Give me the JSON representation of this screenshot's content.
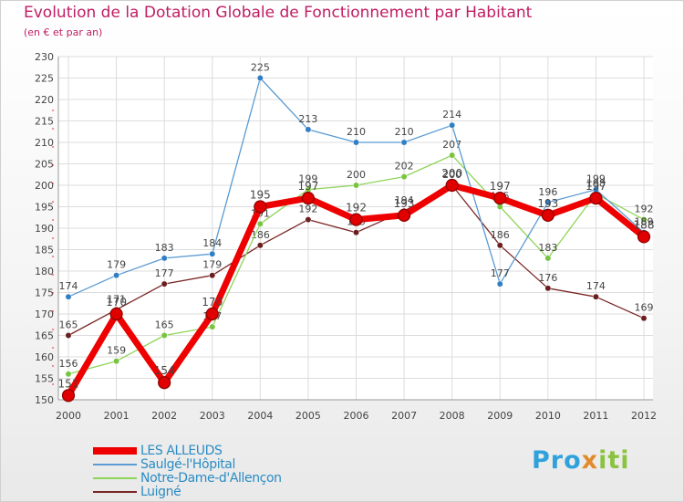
{
  "header": {
    "title": "Evolution de la Dotation Globale de Fonctionnement par Habitant",
    "subtitle": "(en € et par an)"
  },
  "logo": {
    "parts": [
      "Pro",
      "x",
      "iti"
    ],
    "colors": [
      "#2fa2dc",
      "#e28a2c",
      "#8ac33f"
    ]
  },
  "chart_data": {
    "type": "line",
    "title": "Evolution de la Dotation Globale de Fonctionnement par Habitant",
    "subtitle": "(en € et par an)",
    "xlabel": "",
    "ylabel": "",
    "x": [
      "2000",
      "2001",
      "2002",
      "2003",
      "2004",
      "2005",
      "2006",
      "2007",
      "2008",
      "2009",
      "2010",
      "2011",
      "2012"
    ],
    "ylim": [
      150,
      230
    ],
    "yticks": [
      150,
      155,
      160,
      165,
      170,
      175,
      180,
      185,
      190,
      195,
      200,
      205,
      210,
      215,
      220,
      225,
      230
    ],
    "grid": true,
    "legend_position": "bottom-left",
    "series": [
      {
        "name": "Luigné",
        "color": "#7a2626",
        "values": [
          165,
          171,
          177,
          179,
          186,
          192,
          189,
          194,
          200,
          186,
          176,
          174,
          169
        ],
        "labels": [
          "165",
          "171",
          "177",
          "179",
          "186",
          "192",
          "189",
          "194",
          "200",
          "186",
          "176",
          "174",
          "169"
        ]
      },
      {
        "name": "Notre-Dame-d'Allençon",
        "color": "#8fd45a",
        "values": [
          156,
          159,
          165,
          167,
          191,
          199,
          200,
          202,
          207,
          195,
          183,
          198,
          192
        ],
        "labels": [
          "156",
          "159",
          "165",
          "167",
          "191",
          "199",
          "200",
          "202",
          "207",
          "195",
          "183",
          "198",
          "192"
        ]
      },
      {
        "name": "Saulgé-l'Hôpital",
        "color": "#5a9bd2",
        "values": [
          174,
          179,
          183,
          184,
          225,
          213,
          210,
          210,
          214,
          177,
          196,
          199,
          189
        ],
        "labels": [
          "174",
          "179",
          "183",
          "184",
          "225",
          "213",
          "210",
          "210",
          "214",
          "177",
          "196",
          "199",
          "189"
        ]
      },
      {
        "name": "LES ALLEUDS",
        "color": "#ee0000",
        "values": [
          151,
          170,
          154,
          170,
          195,
          197,
          192,
          193,
          200,
          197,
          193,
          197,
          188
        ],
        "labels": [
          "151",
          "170",
          "154",
          "170",
          "195",
          "197",
          "192",
          "193",
          "200",
          "197",
          "193",
          "197",
          "188"
        ]
      }
    ],
    "legend": [
      "LES ALLEUDS",
      "Saulgé-l'Hôpital",
      "Notre-Dame-d'Allençon",
      "Luigné"
    ]
  }
}
